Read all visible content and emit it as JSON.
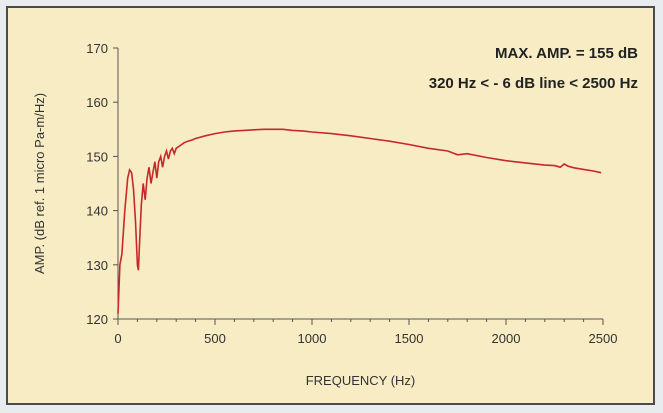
{
  "chart_data": {
    "type": "line",
    "title": "",
    "xlabel": "FREQUENCY  (Hz)",
    "ylabel": "AMP. (dB ref. 1 micro Pa-m/Hz)",
    "xlim": [
      0,
      2500
    ],
    "ylim": [
      120,
      170
    ],
    "xticks": [
      0,
      500,
      1000,
      1500,
      2000,
      2500
    ],
    "yticks": [
      120,
      130,
      140,
      150,
      160,
      170
    ],
    "grid": false,
    "line_color": "#c8282a",
    "annotations": [
      "MAX. AMP. = 155 dB",
      "320 Hz < - 6 dB line < 2500 Hz"
    ],
    "series": [
      {
        "x": [
          0,
          10,
          20,
          35,
          50,
          60,
          70,
          80,
          90,
          100,
          105,
          110,
          120,
          130,
          140,
          150,
          160,
          170,
          180,
          190,
          200,
          210,
          220,
          230,
          240,
          250,
          260,
          270,
          280,
          290,
          300,
          320,
          340,
          360,
          380,
          400,
          450,
          500,
          550,
          600,
          650,
          700,
          750,
          800,
          850,
          900,
          950,
          1000,
          1100,
          1200,
          1300,
          1400,
          1500,
          1600,
          1700,
          1750,
          1800,
          1900,
          2000,
          2100,
          2200,
          2250,
          2280,
          2300,
          2320,
          2350,
          2400,
          2450,
          2490
        ],
        "y": [
          121,
          130,
          132,
          140,
          146,
          147.5,
          147,
          144,
          138,
          130,
          129,
          133,
          141,
          145,
          142,
          146,
          148,
          145,
          147,
          149,
          146,
          149,
          150,
          148,
          150,
          151,
          149.5,
          151,
          151.5,
          150.5,
          151.5,
          152,
          152.5,
          152.8,
          153,
          153.3,
          153.8,
          154.2,
          154.5,
          154.7,
          154.8,
          154.9,
          155,
          155,
          155,
          154.8,
          154.7,
          154.5,
          154.2,
          153.8,
          153.3,
          152.8,
          152.2,
          151.5,
          151,
          150.3,
          150.5,
          149.8,
          149.2,
          148.8,
          148.4,
          148.3,
          148,
          148.6,
          148.2,
          147.9,
          147.6,
          147.3,
          147
        ]
      }
    ]
  }
}
